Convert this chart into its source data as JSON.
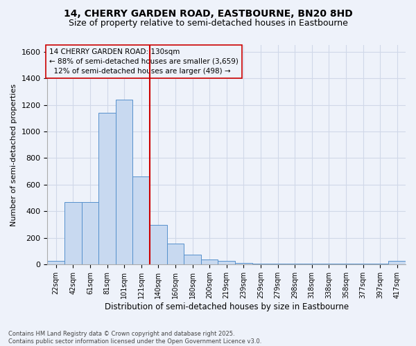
{
  "title1": "14, CHERRY GARDEN ROAD, EASTBOURNE, BN20 8HD",
  "title2": "Size of property relative to semi-detached houses in Eastbourne",
  "xlabel": "Distribution of semi-detached houses by size in Eastbourne",
  "ylabel": "Number of semi-detached properties",
  "footnote": "Contains HM Land Registry data © Crown copyright and database right 2025.\nContains public sector information licensed under the Open Government Licence v3.0.",
  "bin_labels": [
    "22sqm",
    "42sqm",
    "61sqm",
    "81sqm",
    "101sqm",
    "121sqm",
    "140sqm",
    "160sqm",
    "180sqm",
    "200sqm",
    "219sqm",
    "239sqm",
    "259sqm",
    "279sqm",
    "298sqm",
    "318sqm",
    "338sqm",
    "358sqm",
    "377sqm",
    "397sqm",
    "417sqm"
  ],
  "bar_heights": [
    30,
    470,
    470,
    1140,
    1240,
    660,
    300,
    160,
    75,
    40,
    30,
    10,
    5,
    5,
    5,
    5,
    5,
    5,
    5,
    5,
    30
  ],
  "bar_color": "#c8d9f0",
  "bar_edge_color": "#5590cc",
  "property_size_bin": 6,
  "property_label": "14 CHERRY GARDEN ROAD: 130sqm",
  "pct_smaller": 88,
  "count_smaller": 3659,
  "pct_larger": 12,
  "count_larger": 498,
  "vline_color": "#cc0000",
  "box_edge_color": "#cc0000",
  "ylim": [
    0,
    1650
  ],
  "yticks": [
    0,
    200,
    400,
    600,
    800,
    1000,
    1200,
    1400,
    1600
  ],
  "background_color": "#eef2fa",
  "grid_color": "#d0d8e8",
  "title_fontsize": 10,
  "subtitle_fontsize": 9,
  "annotation_fontsize": 7.5,
  "footnote_fontsize": 6
}
